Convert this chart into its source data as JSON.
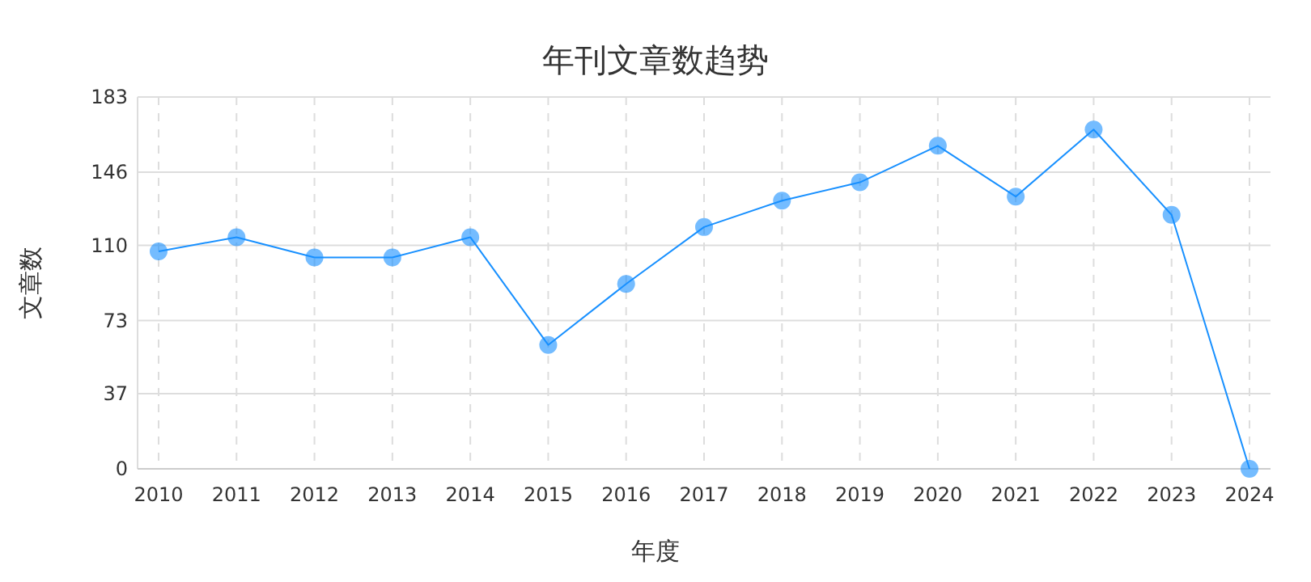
{
  "chart_data": {
    "type": "line",
    "title": "年刊文章数趋势",
    "xlabel": "年度",
    "ylabel": "文章数",
    "categories": [
      "2010",
      "2011",
      "2012",
      "2013",
      "2014",
      "2015",
      "2016",
      "2017",
      "2018",
      "2019",
      "2020",
      "2021",
      "2022",
      "2023",
      "2024"
    ],
    "series": [
      {
        "color": "#1890ff",
        "values": [
          107,
          114,
          104,
          104,
          114,
          61,
          91,
          119,
          132,
          141,
          159,
          134,
          167,
          125,
          0
        ]
      }
    ],
    "ylim": [
      0,
      183
    ],
    "yticks": [
      0,
      37,
      73,
      110,
      146,
      183
    ],
    "grid": true,
    "marker": "circle",
    "line_style": "solid"
  }
}
